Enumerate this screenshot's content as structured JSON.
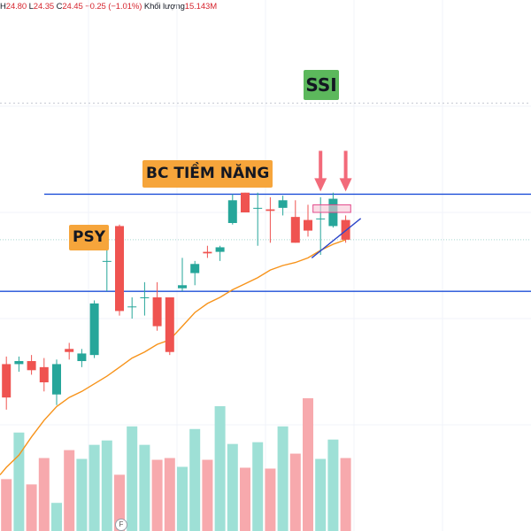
{
  "legend": {
    "high_label": "H",
    "high": "24.80",
    "low_label": "L",
    "low": "24.35",
    "close_label": "C",
    "close": "24.45",
    "change": "−0.25 (−1.01%)",
    "volume_label": "Khối lượng",
    "volume": "15.143M"
  },
  "annotations": {
    "ticker": "SSI",
    "bc_label": "BC TIỀM NĂNG",
    "psy_label": "PSY",
    "event_marker": "F"
  },
  "colors": {
    "up": "#26a69a",
    "down": "#ef5350",
    "vol_up": "#9ee0d6",
    "vol_down": "#f7a9ad",
    "ma": "#f7931a",
    "level": "#1e4fd8",
    "trendline": "#2d46c9",
    "arrow": "#f26a7a",
    "highlight": "#f7c6d6",
    "tag_ssi": "#5cb85c",
    "tag_orange": "#f6a53b"
  },
  "chart_data": {
    "type": "candlestick",
    "ylim": [
      22.8,
      26.3
    ],
    "x": [
      1,
      2,
      3,
      4,
      5,
      6,
      7,
      8,
      9,
      10,
      11,
      12,
      13,
      14,
      15,
      16,
      17,
      18,
      19,
      20,
      21,
      22,
      23,
      24,
      25,
      26,
      27,
      28
    ],
    "ohlc": [
      [
        23.9,
        23.95,
        23.6,
        23.68
      ],
      [
        23.9,
        23.95,
        23.85,
        23.92
      ],
      [
        23.92,
        23.96,
        23.83,
        23.86
      ],
      [
        23.88,
        23.94,
        23.72,
        23.78
      ],
      [
        23.7,
        23.93,
        23.63,
        23.9
      ],
      [
        24.0,
        24.04,
        23.93,
        23.98
      ],
      [
        23.92,
        24.0,
        23.88,
        23.97
      ],
      [
        23.96,
        24.32,
        23.94,
        24.3
      ],
      [
        24.58,
        24.78,
        24.38,
        24.58
      ],
      [
        24.81,
        24.82,
        24.22,
        24.25
      ],
      [
        24.28,
        24.34,
        24.2,
        24.28
      ],
      [
        24.34,
        24.44,
        24.22,
        24.34
      ],
      [
        24.34,
        24.44,
        24.12,
        24.15
      ],
      [
        24.34,
        24.34,
        23.96,
        23.98
      ],
      [
        24.4,
        24.6,
        24.38,
        24.42
      ],
      [
        24.5,
        24.58,
        24.42,
        24.56
      ],
      [
        24.64,
        24.68,
        24.6,
        24.63
      ],
      [
        24.64,
        24.68,
        24.58,
        24.67
      ],
      [
        24.83,
        25.02,
        24.82,
        24.98
      ],
      [
        25.03,
        25.03,
        24.9,
        24.9
      ],
      [
        24.93,
        25.03,
        24.68,
        24.93
      ],
      [
        24.92,
        25.0,
        24.7,
        24.91
      ],
      [
        24.93,
        25.01,
        24.88,
        24.98
      ],
      [
        24.87,
        24.98,
        24.7,
        24.7
      ],
      [
        24.85,
        24.95,
        24.74,
        24.78
      ],
      [
        24.86,
        25.0,
        24.62,
        24.86
      ],
      [
        24.81,
        25.03,
        24.8,
        24.99
      ],
      [
        24.85,
        24.88,
        24.7,
        24.72
      ]
    ],
    "volume": [
      5.9,
      11.2,
      5.3,
      8.3,
      3.2,
      9.2,
      8.2,
      9.8,
      10.3,
      6.4,
      11.9,
      9.8,
      8.1,
      8.3,
      7.3,
      11.6,
      8.1,
      14.2,
      9.9,
      7.2,
      10.1,
      7.1,
      11.9,
      8.8,
      15.1,
      8.2,
      10.4,
      8.3
    ],
    "ma": [
      23.22,
      23.3,
      23.42,
      23.53,
      23.62,
      23.68,
      23.72,
      23.77,
      23.82,
      23.88,
      23.94,
      23.98,
      24.03,
      24.06,
      24.15,
      24.24,
      24.3,
      24.34,
      24.39,
      24.43,
      24.47,
      24.52,
      24.55,
      24.57,
      24.6,
      24.65,
      24.69,
      24.72
    ],
    "levels": [
      25.02,
      24.38
    ],
    "dotted_level": 25.62,
    "trendline": {
      "from": [
        25.3,
        24.6
      ],
      "to": [
        29.2,
        24.86
      ]
    },
    "arrows_at_x": [
      26,
      28
    ],
    "highlight": {
      "x": [
        25.4,
        28.4
      ],
      "y": [
        24.9,
        24.95
      ]
    }
  }
}
